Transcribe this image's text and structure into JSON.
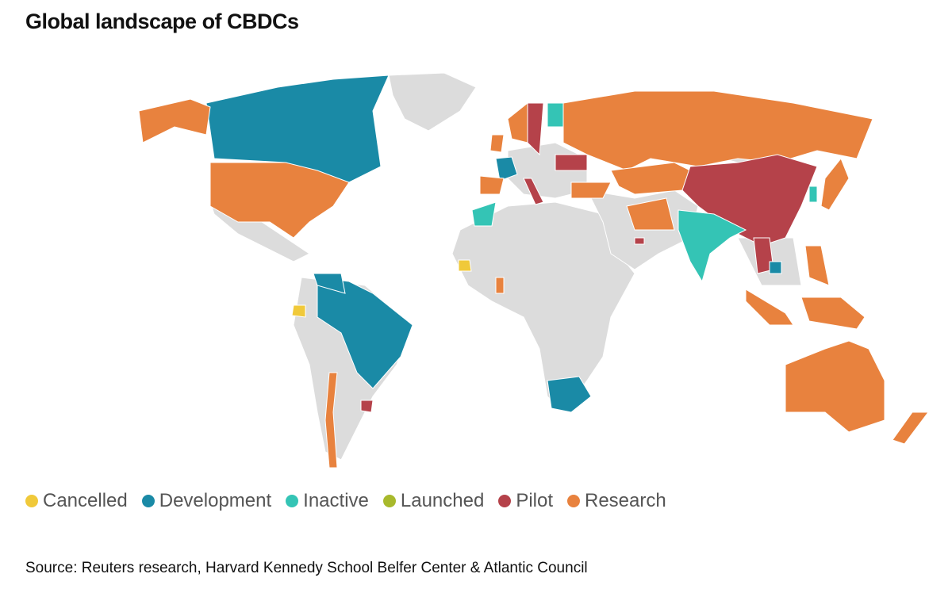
{
  "title": "Global landscape of CBDCs",
  "legend": [
    {
      "name": "Cancelled",
      "color": "#f0c93a"
    },
    {
      "name": "Development",
      "color": "#1a8aa6"
    },
    {
      "name": "Inactive",
      "color": "#34c4b5"
    },
    {
      "name": "Launched",
      "color": "#a8b92c"
    },
    {
      "name": "Pilot",
      "color": "#b5424a"
    },
    {
      "name": "Research",
      "color": "#e8823e"
    }
  ],
  "source": "Source: Reuters research, Harvard Kennedy School Belfer Center & Atlantic Council"
}
